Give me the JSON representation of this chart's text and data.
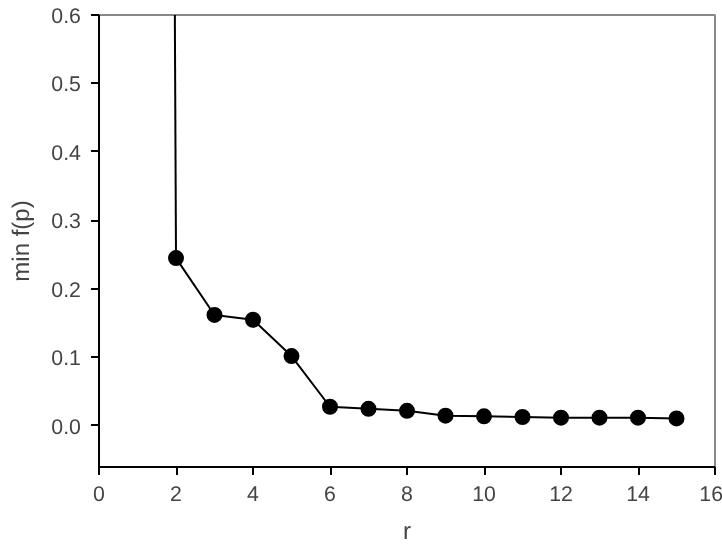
{
  "chart_data": {
    "type": "line",
    "xlabel": "r",
    "ylabel": "min f(p)",
    "series": [
      {
        "color": "#000000",
        "x": [
          1.97,
          2
        ],
        "values": [
          0.6,
          0.245
        ]
      },
      {
        "color": "#000000",
        "marker": "circle",
        "x": [
          2,
          3,
          4,
          5,
          6,
          7,
          8,
          9,
          10,
          11,
          12,
          13,
          14,
          15
        ],
        "values": [
          0.245,
          0.162,
          0.155,
          0.102,
          0.028,
          0.025,
          0.022,
          0.015,
          0.014,
          0.013,
          0.012,
          0.012,
          0.012,
          0.011
        ]
      }
    ],
    "xlim": [
      0,
      16
    ],
    "xticks": [
      0,
      2,
      4,
      6,
      8,
      10,
      12,
      14,
      16
    ],
    "ylim": [
      -0.06,
      0.6
    ],
    "yticks": [
      {
        "value": 0,
        "label": "0.0"
      },
      0.1,
      0.2,
      0.3,
      0.4,
      0.5,
      0.6
    ],
    "grid": false
  }
}
